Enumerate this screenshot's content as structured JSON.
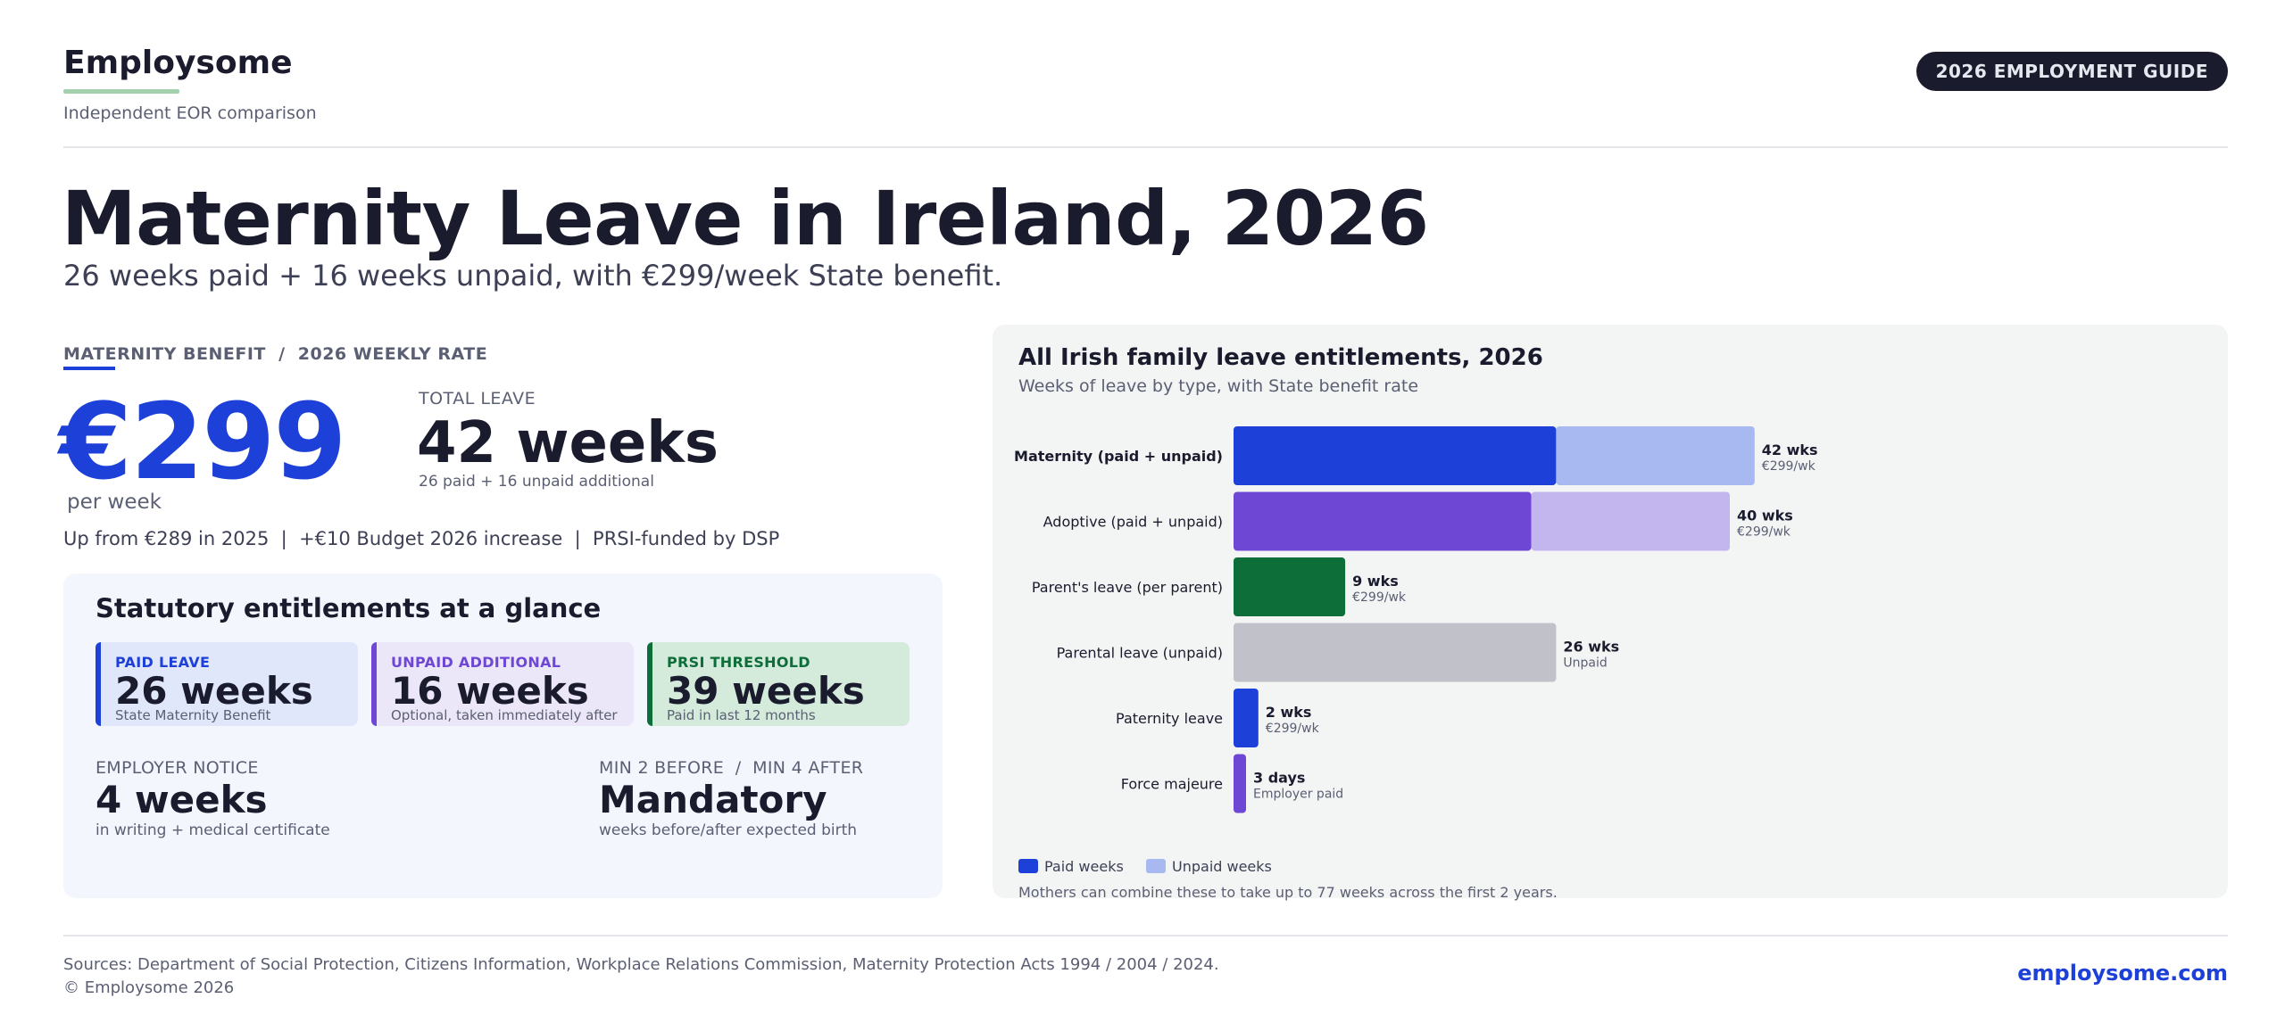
{
  "header": {
    "brand": "Employsome",
    "brand_sub": "Independent EOR comparison",
    "guide_pill": "2026 EMPLOYMENT GUIDE"
  },
  "title": {
    "main": "Maternity Leave in Ireland, 2026",
    "sub": "26 weeks paid + 16 weeks unpaid, with €299/week State benefit."
  },
  "benefit": {
    "section_label": "MATERNITY BENEFIT  /  2026 WEEKLY RATE",
    "price": "€299",
    "per_week": "per week",
    "total_label": "TOTAL LEAVE",
    "total_value": "42 weeks",
    "total_sub": "26 paid + 16 unpaid additional",
    "note": "Up from €289 in 2025  |  +€10 Budget 2026 increase  |  PRSI-funded by DSP"
  },
  "statutory": {
    "title": "Statutory entitlements at a glance",
    "tiles": [
      {
        "label": "PAID LEAVE",
        "value": "26 weeks",
        "sub": "State Maternity Benefit"
      },
      {
        "label": "UNPAID ADDITIONAL",
        "value": "16 weeks",
        "sub": "Optional, taken immediately after"
      },
      {
        "label": "PRSI THRESHOLD",
        "value": "39 weeks",
        "sub": "Paid in last 12 months"
      }
    ],
    "facts": [
      {
        "label": "EMPLOYER NOTICE",
        "value": "4 weeks",
        "sub": "in writing + medical certificate"
      },
      {
        "label": "MIN 2 BEFORE  /  MIN 4 AFTER",
        "value": "Mandatory",
        "sub": "weeks before/after expected birth"
      }
    ]
  },
  "colors": {
    "paid_blue": "#1d40d8",
    "unpaid_blue": "#a8b8f0",
    "paid_purple": "#6e48d4",
    "unpaid_purple": "#c3b5ee",
    "green": "#0d6e3a",
    "grey": "#c1c1ca"
  },
  "chart_data": {
    "type": "bar",
    "orientation": "horizontal",
    "stacked": true,
    "title": "All Irish family leave entitlements, 2026",
    "subtitle": "Weeks of leave by type, with State benefit rate",
    "xlim": [
      0,
      42
    ],
    "legend_placement": "bottom-left",
    "grid": false,
    "legend": [
      {
        "name": "Paid weeks",
        "color": "#1d40d8"
      },
      {
        "name": "Unpaid weeks",
        "color": "#a8b8f0"
      }
    ],
    "rows": [
      {
        "label": "Maternity (paid + unpaid)",
        "paid": 26,
        "unpaid": 16,
        "total_label": "42 wks",
        "rate_label": "€299/wk",
        "paid_color": "#1d40d8",
        "unpaid_color": "#a8b8f0",
        "bold": true
      },
      {
        "label": "Adoptive (paid + unpaid)",
        "paid": 24,
        "unpaid": 16,
        "total_label": "40 wks",
        "rate_label": "€299/wk",
        "paid_color": "#6e48d4",
        "unpaid_color": "#c3b5ee",
        "bold": false
      },
      {
        "label": "Parent's leave (per parent)",
        "paid": 9,
        "unpaid": 0,
        "total_label": "9 wks",
        "rate_label": "€299/wk",
        "paid_color": "#0d6e3a",
        "unpaid_color": "#c1c1ca",
        "bold": false
      },
      {
        "label": "Parental leave (unpaid)",
        "paid": 0,
        "unpaid": 26,
        "total_label": "26 wks",
        "rate_label": "Unpaid",
        "paid_color": "#c1c1ca",
        "unpaid_color": "#c1c1ca",
        "bold": false
      },
      {
        "label": "Paternity leave",
        "paid": 2,
        "unpaid": 0,
        "total_label": "2 wks",
        "rate_label": "€299/wk",
        "paid_color": "#1d40d8",
        "unpaid_color": "#a8b8f0",
        "bold": false
      },
      {
        "label": "Force majeure",
        "paid": 0.6,
        "unpaid": 0,
        "total_label": "3 days",
        "rate_label": "Employer paid",
        "paid_color": "#6e48d4",
        "unpaid_color": "#c3b5ee",
        "bold": false
      }
    ],
    "footnote": "Mothers can combine these to take up to 77 weeks across the first 2 years."
  },
  "footer": {
    "sources": "Sources: Department of Social Protection, Citizens Information, Workplace Relations Commission, Maternity Protection Acts 1994 / 2004 / 2024.",
    "copyright": "© Employsome 2026",
    "site": "employsome.com"
  }
}
